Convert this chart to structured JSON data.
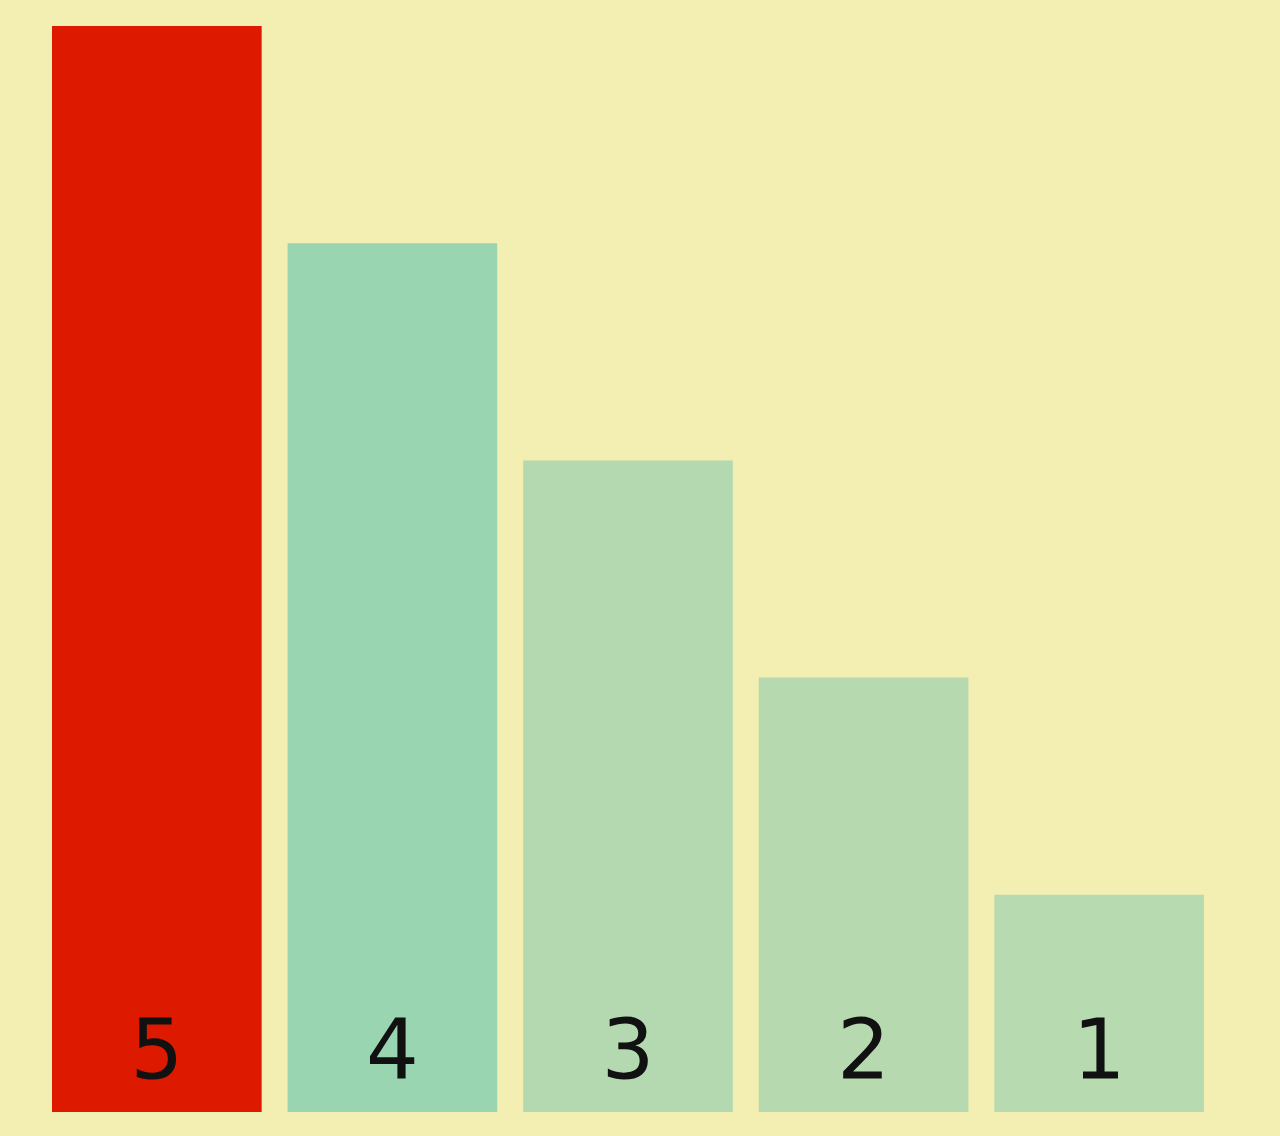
{
  "chart_data": {
    "type": "bar",
    "categories": [
      null,
      null,
      null,
      null,
      null
    ],
    "values": [
      5,
      4,
      3,
      2,
      1
    ],
    "colors": [
      "#dd1a00",
      "#9ad5b2",
      "#b4d9b0",
      "#b6d9b0",
      "#b8dab0"
    ],
    "data_labels": true,
    "grid": false
  }
}
